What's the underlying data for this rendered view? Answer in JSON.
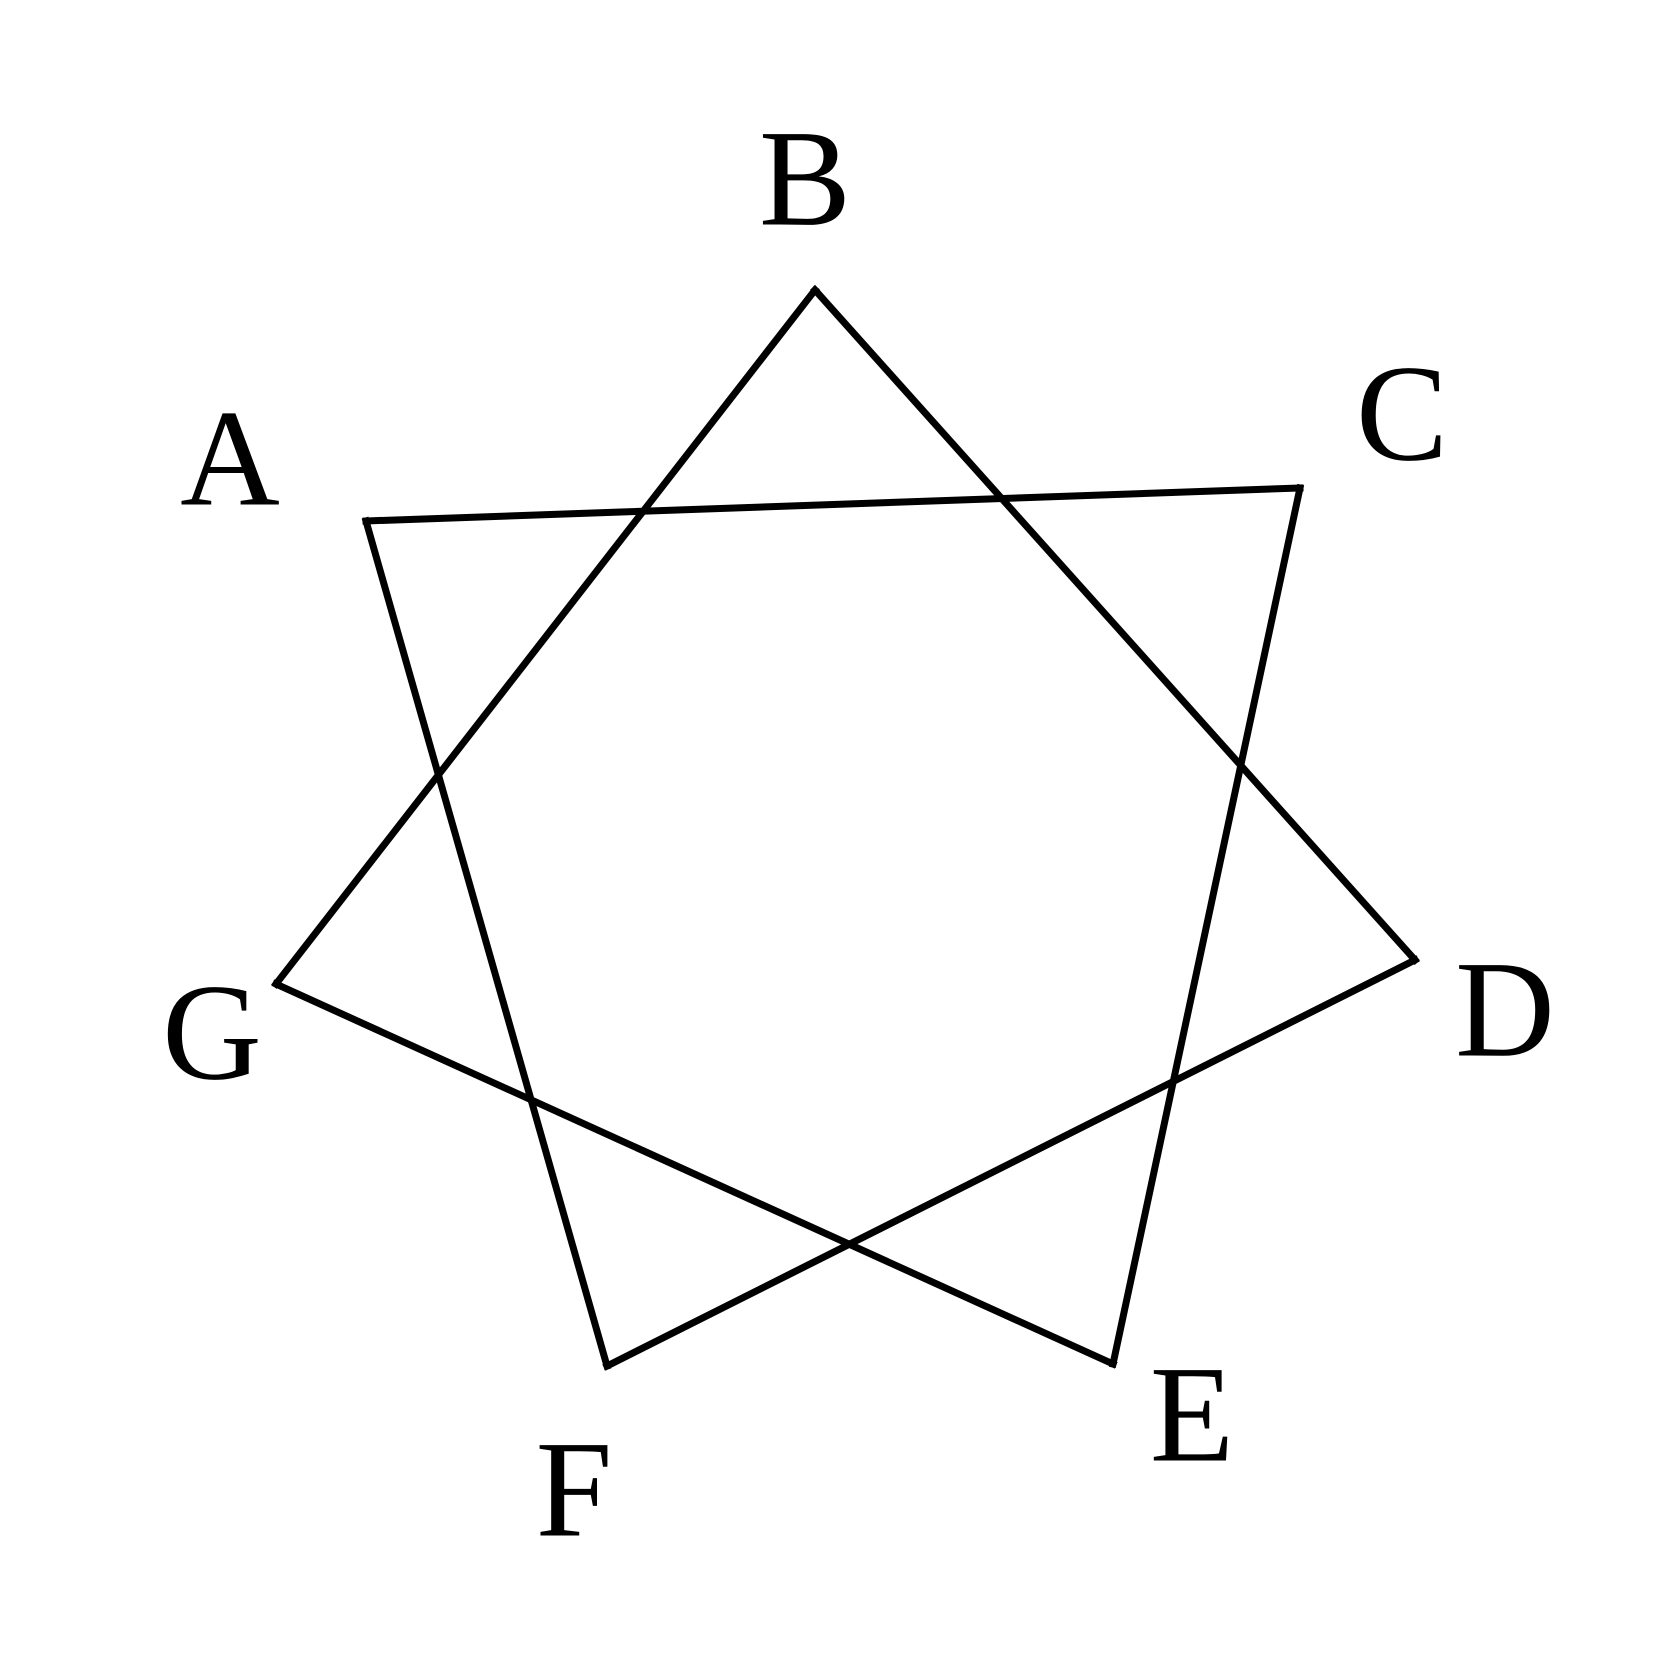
{
  "figure": {
    "stroke_color": "#000000",
    "background_color": "#ffffff",
    "vertices": [
      {
        "id": "A",
        "label": "A"
      },
      {
        "id": "B",
        "label": "B"
      },
      {
        "id": "C",
        "label": "C"
      },
      {
        "id": "D",
        "label": "D"
      },
      {
        "id": "E",
        "label": "E"
      },
      {
        "id": "F",
        "label": "F"
      },
      {
        "id": "G",
        "label": "G"
      }
    ],
    "edges": [
      [
        "A",
        "C"
      ],
      [
        "C",
        "E"
      ],
      [
        "E",
        "G"
      ],
      [
        "G",
        "B"
      ],
      [
        "B",
        "D"
      ],
      [
        "D",
        "F"
      ],
      [
        "F",
        "A"
      ]
    ]
  }
}
